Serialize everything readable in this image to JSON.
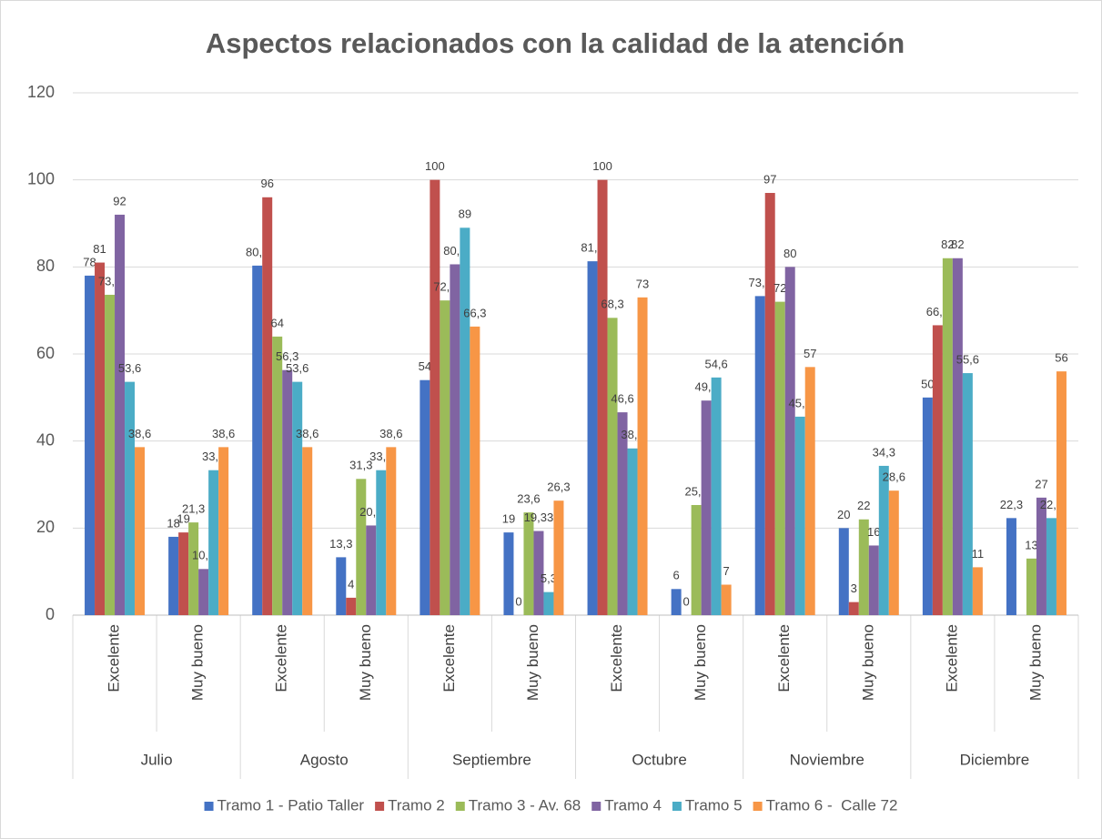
{
  "chart_data": {
    "type": "bar",
    "title": "Aspectos relacionados con la calidad de la atención",
    "groups": [
      "Julio",
      "Agosto",
      "Septiembre",
      "Octubre",
      "Noviembre",
      "Diciembre"
    ],
    "categories": [
      "Excelente",
      "Muy bueno",
      "Excelente",
      "Muy bueno",
      "Excelente",
      "Muy bueno",
      "Excelente",
      "Muy bueno",
      "Excelente",
      "Muy bueno",
      "Excelente",
      "Muy bueno"
    ],
    "series": [
      {
        "name": "Tramo 1 - Patio Taller",
        "color": "#4472c4",
        "values": [
          78,
          18,
          80.3,
          13.3,
          54,
          19,
          81.3,
          6,
          73.3,
          20,
          50,
          22.3
        ],
        "value_labels": [
          "78",
          "18",
          "80,3",
          "13,3",
          "54",
          "19",
          "81,3",
          "6",
          "73,3",
          "20",
          "50",
          "22,3"
        ]
      },
      {
        "name": "Tramo 2",
        "color": "#c0504d",
        "values": [
          81,
          19,
          96,
          4,
          100,
          0,
          100,
          0,
          97,
          3,
          66.6,
          null
        ],
        "value_labels": [
          "81",
          "19",
          "96",
          "4",
          "100",
          "0",
          "100",
          "0",
          "97",
          "3",
          "66,6",
          null
        ]
      },
      {
        "name": "Tramo 3 - Av. 68",
        "color": "#9bbb59",
        "values": [
          73.6,
          21.3,
          64,
          31.3,
          72.3,
          23.6,
          68.3,
          25.3,
          72,
          22,
          82,
          13
        ],
        "value_labels": [
          "73,6",
          "21,3",
          "64",
          "31,3",
          "72,3",
          "23,6",
          "68,3",
          "25,3",
          "72",
          "22",
          "82",
          "13"
        ]
      },
      {
        "name": "Tramo 4",
        "color": "#8064a2",
        "values": [
          92,
          10.6,
          56.3,
          20.6,
          80.6,
          19.33,
          46.6,
          49.3,
          80,
          16,
          82,
          27
        ],
        "value_labels": [
          "92",
          "10,6",
          "56,3",
          "20,6",
          "80,6",
          "19,33",
          "46,6",
          "49,3",
          "80",
          "16",
          "82",
          "27"
        ]
      },
      {
        "name": "Tramo 5",
        "color": "#4bacc6",
        "values": [
          53.6,
          33.3,
          53.6,
          33.3,
          89,
          5.3,
          38.3,
          54.6,
          45.6,
          34.3,
          55.6,
          22.3
        ],
        "value_labels": [
          "53,6",
          "33,3",
          "53,6",
          "33,3",
          "89",
          "5,3",
          "38,3",
          "54,6",
          "45,6",
          "34,3",
          "55,6",
          "22,3"
        ]
      },
      {
        "name": "Tramo 6 -  Calle 72",
        "color": "#f79646",
        "values": [
          38.6,
          38.6,
          38.6,
          38.6,
          66.3,
          26.3,
          73,
          7,
          57,
          28.6,
          11,
          56
        ],
        "value_labels": [
          "38,6",
          "38,6",
          "38,6",
          "38,6",
          "66,3",
          "26,3",
          "73",
          "7",
          "57",
          "28,6",
          "11",
          "56"
        ]
      }
    ],
    "ylim": [
      0,
      120
    ],
    "yticks": [
      0,
      20,
      40,
      60,
      80,
      100,
      120
    ],
    "grid": true,
    "legend": "bottom"
  }
}
